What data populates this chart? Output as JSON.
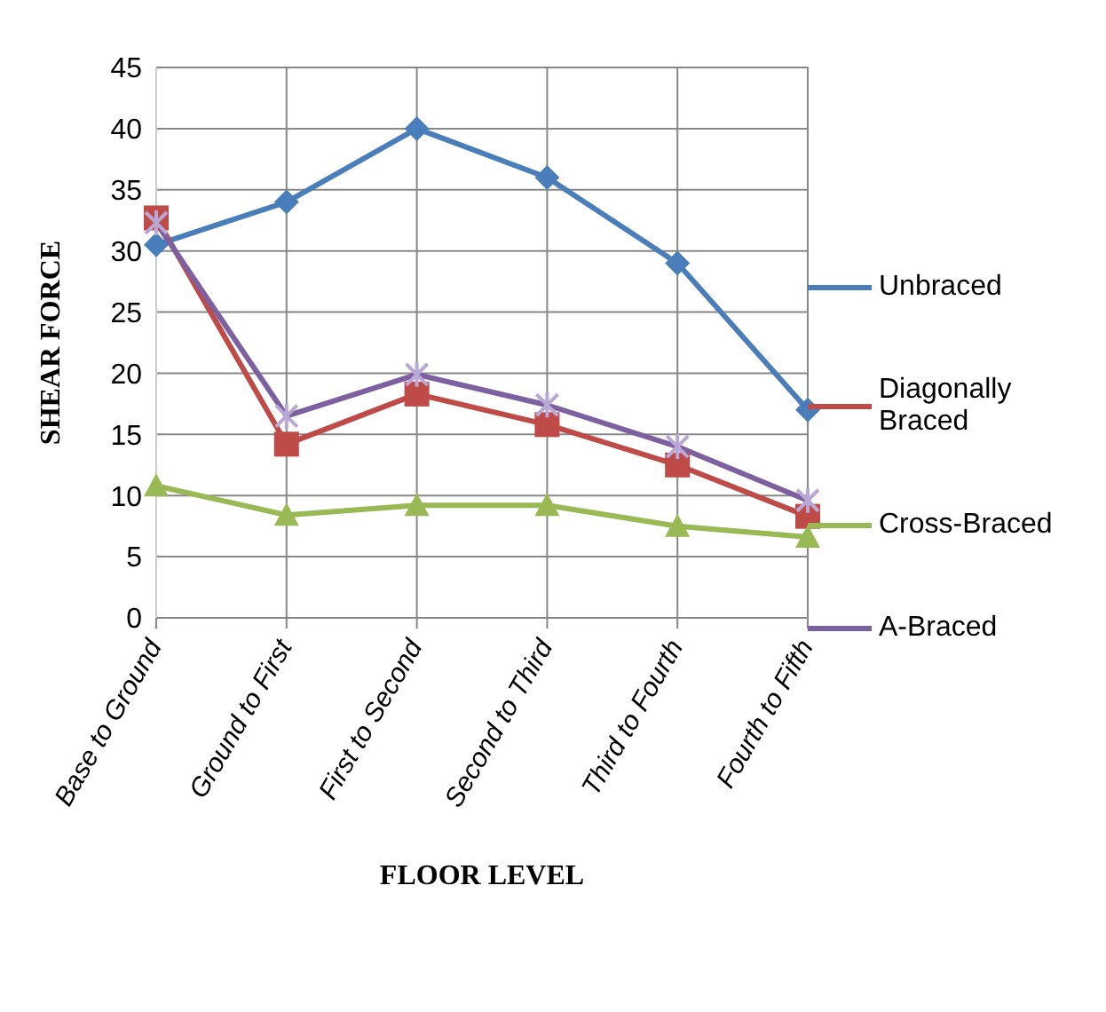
{
  "chart_data": {
    "type": "line",
    "xlabel": "FLOOR LEVEL",
    "ylabel": "SHEAR FORCE",
    "categories": [
      "Base to Ground",
      "Ground to First",
      "First to Second",
      "Second to Third",
      "Third to Fourth",
      "Fourth to Fifth"
    ],
    "series": [
      {
        "name": "Unbraced",
        "color": "#4a7ebb",
        "marker": "diamond",
        "values": [
          30.5,
          34,
          40,
          36,
          29,
          17
        ]
      },
      {
        "name": "Diagonally Braced",
        "color": "#be4b48",
        "marker": "square",
        "values": [
          32.7,
          14.2,
          18.3,
          15.8,
          12.5,
          8.3
        ]
      },
      {
        "name": "Cross-Braced",
        "color": "#98b954",
        "marker": "triangle",
        "values": [
          10.8,
          8.4,
          9.2,
          9.2,
          7.5,
          6.6
        ]
      },
      {
        "name": "A-Braced",
        "color": "#7d60a0",
        "marker": "cross",
        "values": [
          32.3,
          16.5,
          19.9,
          17.4,
          14,
          9.6
        ]
      }
    ],
    "ylim": [
      0,
      45
    ],
    "yticks": [
      0,
      5,
      10,
      15,
      20,
      25,
      30,
      35,
      40,
      45
    ],
    "grid": true,
    "legend": "right"
  }
}
